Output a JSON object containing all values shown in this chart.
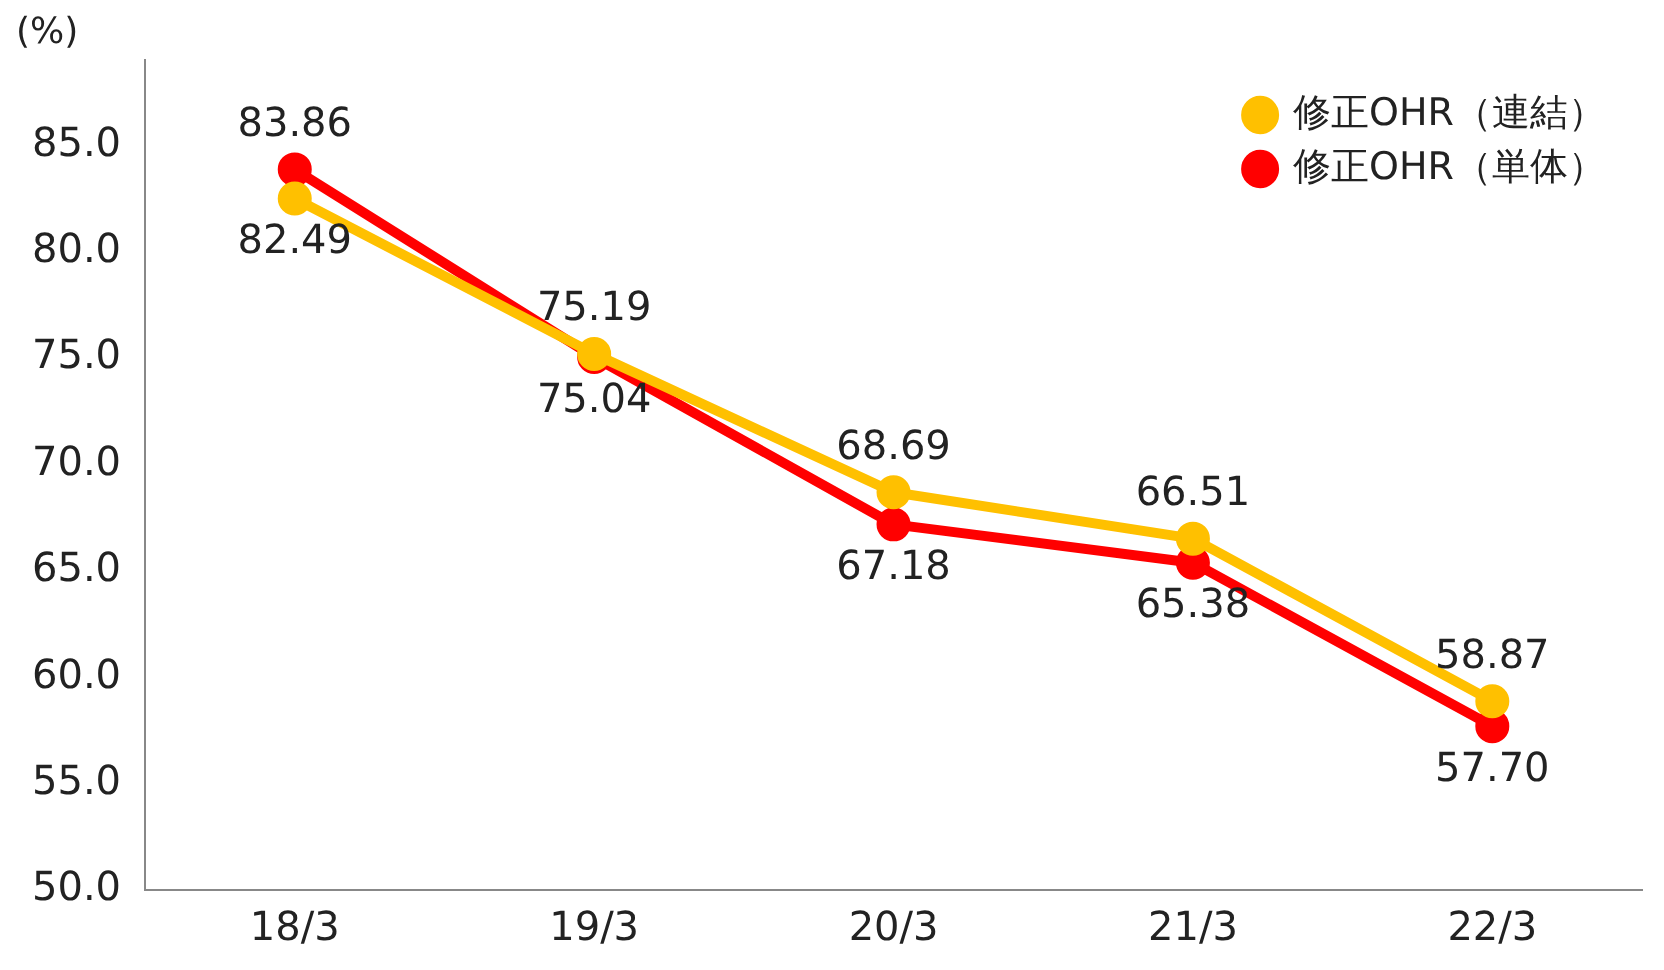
{
  "chart_data": {
    "type": "line",
    "ylabel": "(%)",
    "categories": [
      "18/3",
      "19/3",
      "20/3",
      "21/3",
      "22/3"
    ],
    "series": [
      {
        "name": "修正OHR（連結）",
        "color": "#ffc000",
        "values": [
          82.49,
          75.19,
          68.69,
          66.51,
          58.87
        ],
        "value_labels": [
          "82.49",
          "75.19",
          "68.69",
          "66.51",
          "58.87"
        ]
      },
      {
        "name": "修正OHR（単体）",
        "color": "#ff0000",
        "values": [
          83.86,
          75.04,
          67.18,
          65.38,
          57.7
        ],
        "value_labels": [
          "83.86",
          "75.04",
          "67.18",
          "65.38",
          "57.70"
        ]
      }
    ],
    "ylim": [
      50,
      89
    ],
    "yticks": [
      {
        "value": 50,
        "label": "50.0"
      },
      {
        "value": 55,
        "label": "55.0"
      },
      {
        "value": 60,
        "label": "60.0"
      },
      {
        "value": 65,
        "label": "65.0"
      },
      {
        "value": 70,
        "label": "70.0"
      },
      {
        "value": 75,
        "label": "75.0"
      },
      {
        "value": 80,
        "label": "80.0"
      },
      {
        "value": 85,
        "label": "85.0"
      }
    ],
    "grid": false,
    "legend": "top right",
    "marker": "circle",
    "line_style": "solid"
  }
}
